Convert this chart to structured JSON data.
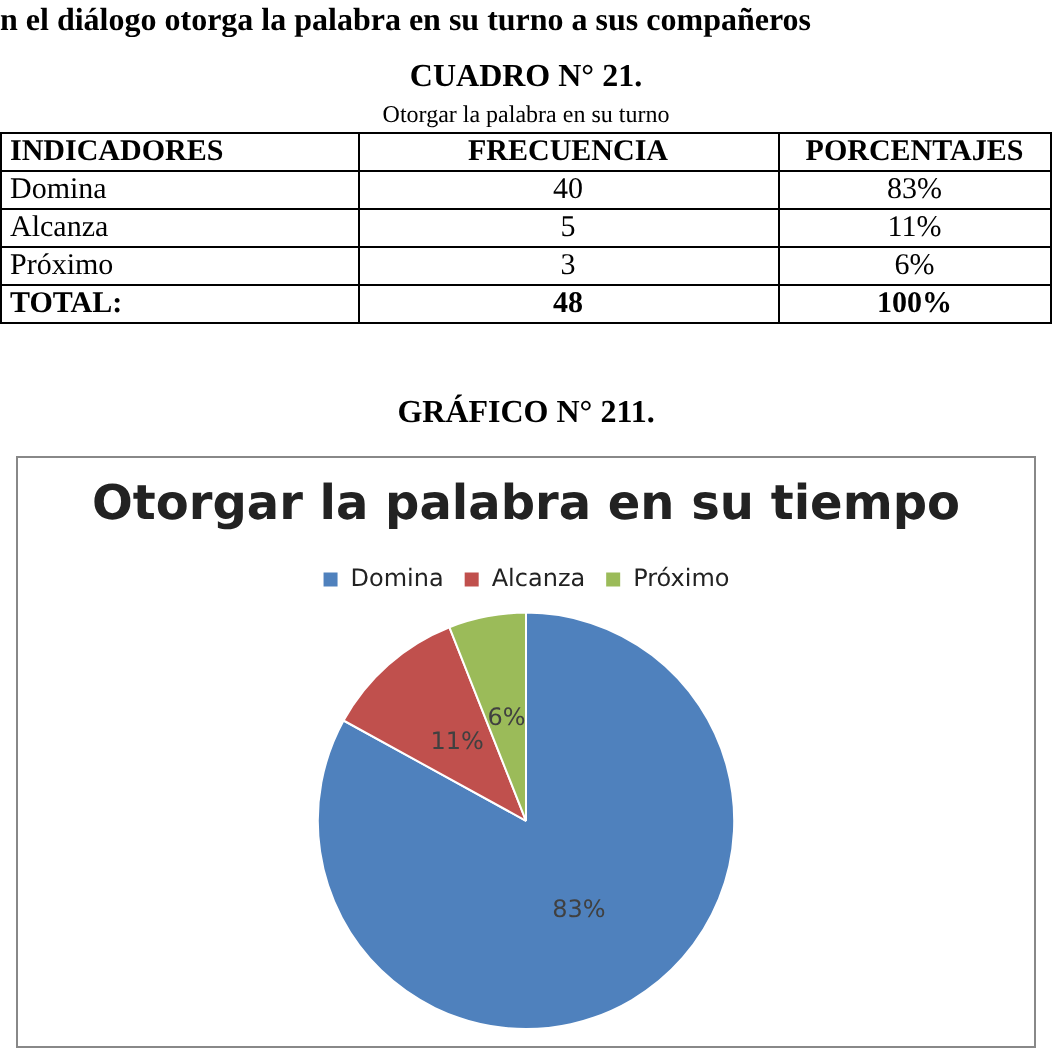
{
  "chart_data": {
    "type": "pie",
    "title": "Otorgar la palabra en su tiempo",
    "categories": [
      "Domina",
      "Alcanza",
      "Próximo"
    ],
    "values": [
      83,
      11,
      6
    ],
    "colors": [
      "#4f81bd",
      "#c0504d",
      "#9bbb59"
    ],
    "value_labels": [
      "83%",
      "11%",
      "6%"
    ],
    "legend": "top",
    "annotations": [
      "n el diálogo otorga la palabra en su turno a sus compañeros",
      "CUADRO N° 21.",
      "Otorgar la palabra en su turno",
      "INDICADORES",
      "FRECUENCIA",
      "PORCENTAJES",
      "Domina",
      "40",
      "83%",
      "Alcanza",
      "5",
      "11%",
      "Próximo",
      "3",
      "6%",
      "TOTAL:",
      "48",
      "100%",
      "GRÁFICO N° 211."
    ]
  }
}
